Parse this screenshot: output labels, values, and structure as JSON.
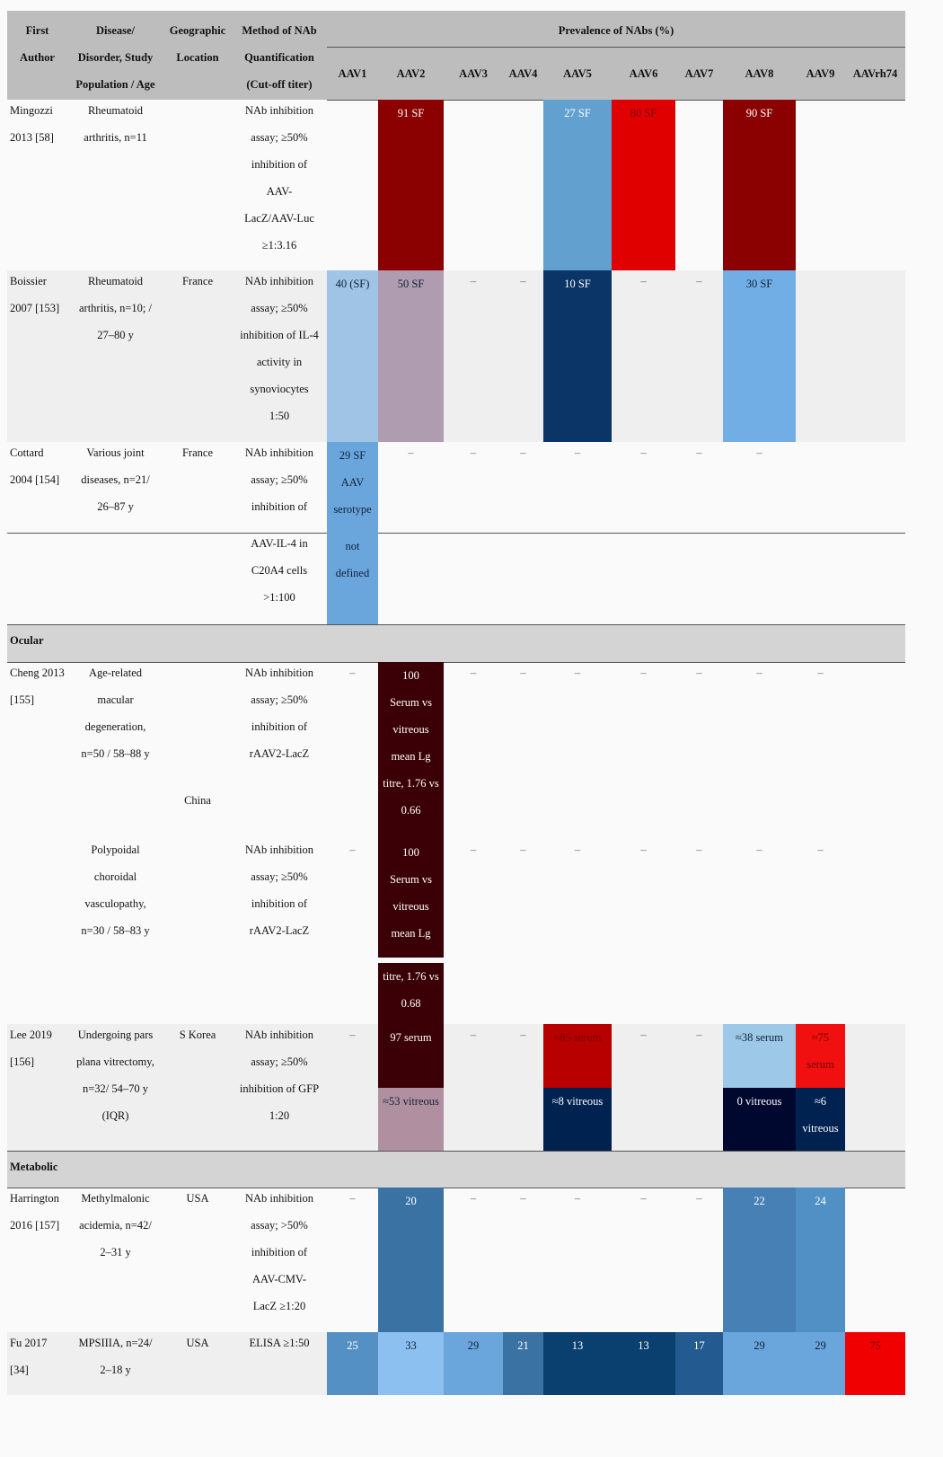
{
  "header": {
    "col_labels": [
      "First\nAuthor",
      "Disease/\nDisorder, Study\nPopulation / Age",
      "Geographic\nLocation",
      "Method of NAb\nQuantification\n(Cut-off titer)"
    ],
    "group_label": "Prevalence of NAbs (%)",
    "serotypes": [
      "AAV1",
      "AAV2",
      "AAV3",
      "AAV4",
      "AAV5",
      "AAV6",
      "AAV7",
      "AAV8",
      "AAV9",
      "AAVrh74"
    ],
    "background": "#bdbdbd"
  },
  "sections": {
    "ocular": "Ocular",
    "metabolic": "Metabolic"
  },
  "rows": [
    {
      "id": "mingozzi",
      "author": "Mingozzi\n2013 [58]",
      "disease": "Rheumatoid\narthritis, n=11",
      "location": "",
      "method": "NAb inhibition\nassay; ≥50%\ninhibition of\nAAV-\nLacZ/AAV-Luc\n≥1:3.16",
      "cells": {
        "1": {
          "text": "91 SF",
          "color": "#8b0000"
        },
        "4": {
          "text": "27 SF",
          "color": "#62a0d0"
        },
        "5": {
          "text": "80 SF",
          "color": "#e00000"
        },
        "7": {
          "text": "90 SF",
          "color": "#8b0000"
        }
      }
    },
    {
      "id": "boissier",
      "shaded": true,
      "author": "Boissier\n2007 [153]",
      "disease": "Rheumatoid\narthritis, n=10; /\n27–80 y",
      "location": "France",
      "method": "NAb inhibition\nassay; ≥50%\ninhibition of IL-4\nactivity in\nsynoviocytes\n1:50",
      "cells": {
        "0": {
          "text": "40 (SF)",
          "color": "#a0c4e6"
        },
        "1": {
          "text": "50 SF",
          "color": "#b09cb0"
        },
        "2": {
          "text": "–"
        },
        "3": {
          "text": "–"
        },
        "4": {
          "text": "10 SF",
          "color": "#0a3566"
        },
        "5": {
          "text": "–"
        },
        "6": {
          "text": "–"
        },
        "7": {
          "text": "30 SF",
          "color": "#72aee6"
        }
      }
    },
    {
      "id": "cottard",
      "author": "Cottard\n2004 [154]",
      "disease": "Various joint\ndiseases, n=21/\n26–87 y",
      "location": "France",
      "method": "NAb inhibition\nassay; ≥50%\ninhibition of",
      "cells": {
        "0": {
          "text": "29 SF\nAAV\nserotype",
          "color": "#6aa6dc"
        },
        "1": {
          "text": "–"
        },
        "2": {
          "text": "–"
        },
        "3": {
          "text": "–"
        },
        "4": {
          "text": "–"
        },
        "5": {
          "text": "–"
        },
        "6": {
          "text": "–"
        },
        "7": {
          "text": "–"
        }
      }
    },
    {
      "id": "cottard_cont",
      "author": "",
      "disease": "",
      "location": "",
      "method": "AAV-IL-4 in\nC20A4 cells\n>1:100",
      "cells": {
        "0": {
          "text": "not\ndefined",
          "color": "#6aa6dc"
        }
      }
    },
    {
      "id": "cheng_amd",
      "author": "Cheng 2013\n[155]",
      "disease": "Age-related\nmacular\ndegeneration,\nn=50 / 58–88 y",
      "location": "",
      "method": "NAb inhibition\nassay; ≥50%\ninhibition of\nrAAV2-LacZ",
      "cells": {
        "0": {
          "text": "–"
        },
        "1": {
          "text": "100\nSerum vs\nvitreous\nmean Lg\ntitre, 1.76 vs\n0.66",
          "color": "#3a0005"
        },
        "2": {
          "text": "–"
        },
        "3": {
          "text": "–"
        },
        "4": {
          "text": "–"
        },
        "5": {
          "text": "–"
        },
        "6": {
          "text": "–"
        },
        "7": {
          "text": "–"
        },
        "8": {
          "text": "–"
        }
      }
    },
    {
      "id": "cheng_location",
      "author": "",
      "disease": "",
      "location": "China",
      "method": "",
      "cells": {}
    },
    {
      "id": "cheng_pcv",
      "author": "",
      "disease": "Polypoidal\nchoroidal\nvasculopathy,\nn=30 / 58–83 y",
      "location": "",
      "method": "NAb inhibition\nassay; ≥50%\ninhibition of\nrAAV2-LacZ",
      "cells": {
        "0": {
          "text": "–"
        },
        "1": {
          "text": "100\nSerum vs\nvitreous\nmean Lg",
          "color": "#3a0005"
        },
        "2": {
          "text": "–"
        },
        "3": {
          "text": "–"
        },
        "4": {
          "text": "–"
        },
        "5": {
          "text": "–"
        },
        "6": {
          "text": "–"
        },
        "7": {
          "text": "–"
        },
        "8": {
          "text": "–"
        }
      }
    },
    {
      "id": "cheng_pcv_cont",
      "author": "",
      "disease": "",
      "location": "",
      "method": "",
      "cells": {
        "1": {
          "text": "titre, 1.76 vs\n0.68",
          "color": "#3a0005"
        }
      }
    },
    {
      "id": "lee_serum",
      "shaded": true,
      "author": "Lee 2019\n[156]",
      "disease": "Undergoing pars\nplana vitrectomy,\nn=32/ 54–70 y\n(IQR)",
      "location": "S Korea",
      "method": "NAb inhibition\nassay; ≥50%\ninhibition of GFP\n1:20",
      "cells": {
        "0": {
          "text": "–"
        },
        "1": {
          "text": "97 serum",
          "color": "#3a0005"
        },
        "2": {
          "text": "–"
        },
        "3": {
          "text": "–"
        },
        "4": {
          "text": "≈85 serum",
          "color": "#b80000"
        },
        "5": {
          "text": "–"
        },
        "6": {
          "text": "–"
        },
        "7": {
          "text": "≈38 serum",
          "color": "#9ec8e8"
        },
        "8": {
          "text": "≈75\nserum",
          "color": "#f01010"
        }
      }
    },
    {
      "id": "lee_vitreous",
      "author": "",
      "disease": "",
      "location": "",
      "method": "",
      "cells": {
        "1": {
          "text": "≈53 vitreous",
          "color": "#b090a0"
        },
        "4": {
          "text": "≈8 vitreous",
          "color": "#002250"
        },
        "7": {
          "text": "0 vitreous",
          "color": "#000830"
        },
        "8": {
          "text": "≈6\nvitreous",
          "color": "#002250"
        }
      }
    },
    {
      "id": "harrington",
      "author": "Harrington\n2016 [157]",
      "disease": "Methylmalonic\nacidemia, n=42/\n2–31 y",
      "location": "USA",
      "method": "NAb inhibition\nassay; >50%\ninhibition of\nAAV-CMV-\nLacZ ≥1:20",
      "cells": {
        "0": {
          "text": "–"
        },
        "1": {
          "text": "20",
          "color": "#3a72a4"
        },
        "2": {
          "text": "–"
        },
        "3": {
          "text": "–"
        },
        "4": {
          "text": "–"
        },
        "5": {
          "text": "–"
        },
        "6": {
          "text": "–"
        },
        "7": {
          "text": "22",
          "color": "#4680b4"
        },
        "8": {
          "text": "24",
          "color": "#5090c4"
        }
      }
    },
    {
      "id": "fu",
      "shaded": true,
      "author": "Fu 2017\n[34]",
      "disease": "MPSIIIA, n=24/\n2–18 y",
      "location": "USA",
      "method": "ELISA ≥1:50",
      "cells": {
        "0": {
          "text": "25",
          "color": "#5590c4"
        },
        "1": {
          "text": "33",
          "color": "#8cc0f0"
        },
        "2": {
          "text": "29",
          "color": "#6aa6dc"
        },
        "3": {
          "text": "21",
          "color": "#3a72a4"
        },
        "4": {
          "text": "13",
          "color": "#0a4070"
        },
        "5": {
          "text": "13",
          "color": "#0a4070"
        },
        "6": {
          "text": "17",
          "color": "#235a90"
        },
        "7": {
          "text": "29",
          "color": "#6aa6dc"
        },
        "8": {
          "text": "29",
          "color": "#6aa6dc"
        },
        "9": {
          "text": "75",
          "color": "#f00000"
        }
      }
    }
  ]
}
